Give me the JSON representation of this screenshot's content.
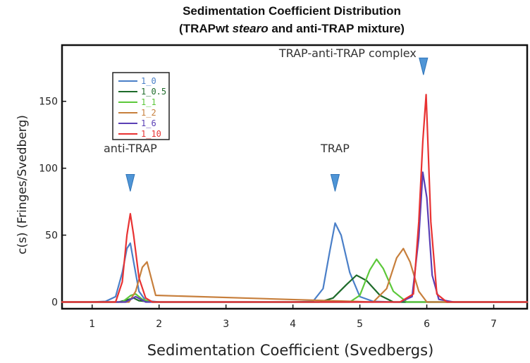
{
  "chart_data": {
    "type": "line",
    "title_line1": "Sedimentation Coefficient Distribution",
    "title_line2_prefix": "(TRAPwt ",
    "title_line2_italic": "stearo",
    "title_line2_suffix": " and anti-TRAP mixture)",
    "xlabel": "Sedimentation Coefficient (Svedbergs)",
    "ylabel": "c(s) (Fringes/Svedberg)",
    "xlim": [
      0.55,
      7.5
    ],
    "ylim": [
      -5,
      192
    ],
    "x_ticks": [
      1,
      2,
      3,
      4,
      5,
      6,
      7
    ],
    "y_ticks": [
      0,
      50,
      100,
      150
    ],
    "grid": false,
    "legend_position": "top-left",
    "annotations": [
      {
        "text": "anti-TRAP",
        "x": 1.57,
        "y": 112,
        "arrow_y": 88
      },
      {
        "text": "TRAP",
        "x": 4.63,
        "y": 112,
        "arrow_y": 88
      },
      {
        "text": "TRAP-anti-TRAP complex",
        "x": 5.95,
        "y": 183,
        "arrow_y": 175
      }
    ],
    "series": [
      {
        "name": "1_0",
        "color": "#4a7fc8",
        "x": [
          0.55,
          1.0,
          1.2,
          1.35,
          1.45,
          1.52,
          1.57,
          1.62,
          1.7,
          1.8,
          2.0,
          3.0,
          4.0,
          4.3,
          4.45,
          4.55,
          4.63,
          4.72,
          4.85,
          5.0,
          5.2,
          5.5,
          6.0,
          6.5,
          7.5
        ],
        "y": [
          0,
          0,
          0.5,
          4,
          22,
          40,
          44,
          30,
          8,
          1,
          0,
          0,
          0,
          0.5,
          10,
          38,
          59,
          50,
          22,
          4,
          0.5,
          0,
          0,
          0,
          0
        ]
      },
      {
        "name": "1_0.5",
        "color": "#1e6b2a",
        "x": [
          0.55,
          1.4,
          1.55,
          1.62,
          1.7,
          1.9,
          4.4,
          4.6,
          4.8,
          4.95,
          5.1,
          5.3,
          5.5,
          7.5
        ],
        "y": [
          0,
          0,
          2,
          3,
          1,
          0,
          0,
          3,
          13,
          20,
          16,
          5,
          0,
          0
        ]
      },
      {
        "name": "1_1",
        "color": "#5cc83a",
        "x": [
          0.55,
          1.45,
          1.58,
          1.65,
          1.75,
          1.9,
          4.85,
          5.0,
          5.15,
          5.25,
          5.35,
          5.5,
          5.7,
          7.5
        ],
        "y": [
          0,
          0,
          5,
          6,
          2,
          0,
          0,
          5,
          24,
          32,
          25,
          8,
          0,
          0
        ]
      },
      {
        "name": "1_2",
        "color": "#c77f3c",
        "x": [
          0.55,
          1.55,
          1.65,
          1.75,
          1.82,
          1.95,
          5.2,
          5.4,
          5.55,
          5.65,
          5.75,
          5.88,
          6.0,
          7.5
        ],
        "y": [
          0,
          0,
          8,
          26,
          30,
          5,
          0,
          10,
          33,
          40,
          30,
          8,
          0,
          0
        ]
      },
      {
        "name": "1_6",
        "color": "#5a3fb5",
        "x": [
          0.55,
          1.5,
          1.65,
          1.8,
          5.6,
          5.78,
          5.88,
          5.94,
          6.0,
          6.08,
          6.18,
          6.4,
          7.5
        ],
        "y": [
          0,
          0,
          4,
          0,
          0,
          4,
          48,
          97,
          78,
          20,
          2,
          0,
          0
        ]
      },
      {
        "name": "1_10",
        "color": "#e83232",
        "x": [
          0.55,
          1.35,
          1.45,
          1.52,
          1.57,
          1.62,
          1.7,
          1.8,
          1.9,
          5.6,
          5.8,
          5.88,
          5.94,
          5.99,
          6.06,
          6.15,
          6.3,
          7.5
        ],
        "y": [
          0,
          0,
          15,
          50,
          66,
          50,
          18,
          3,
          0,
          0,
          6,
          60,
          120,
          155,
          60,
          6,
          0,
          0
        ]
      }
    ]
  }
}
